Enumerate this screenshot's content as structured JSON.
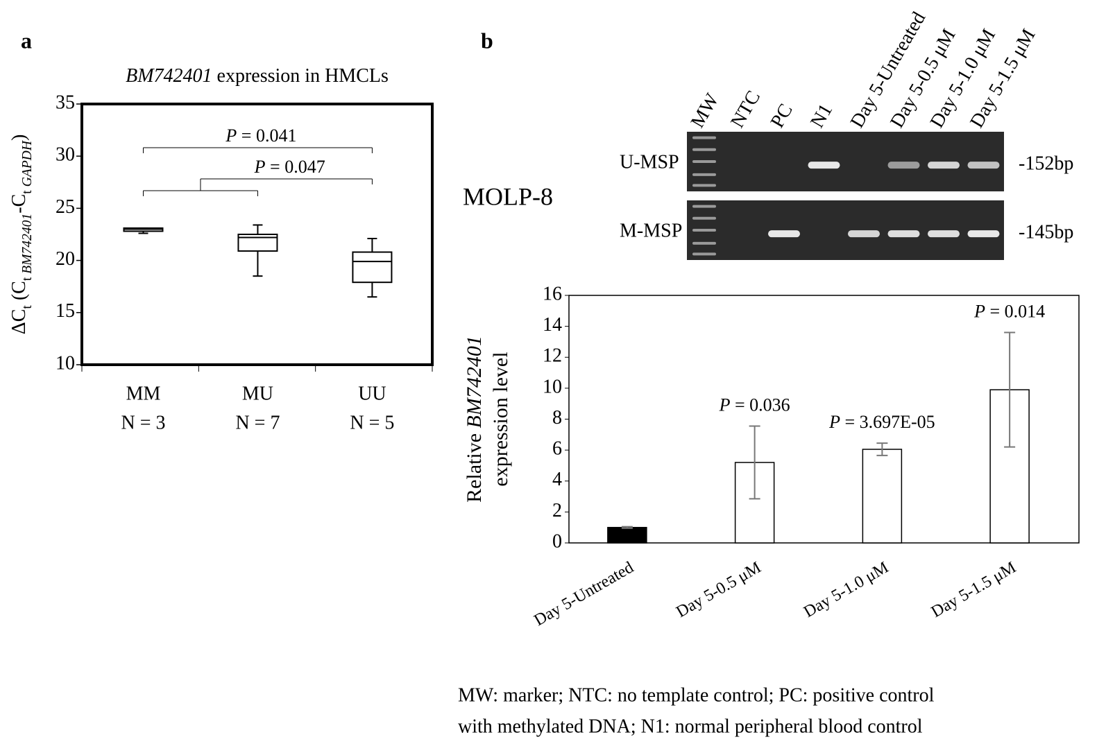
{
  "panels": [
    "a",
    "b"
  ],
  "chart_data": [
    {
      "type": "box",
      "title": [
        {
          "text": "BM742401",
          "italic": true
        },
        {
          "text": " expression in HMCLs"
        }
      ],
      "y_label": [
        {
          "text": "ΔC"
        },
        {
          "text": "t",
          "sub": true
        },
        {
          "text": " (C"
        },
        {
          "text": "t ",
          "sub": true
        },
        {
          "text": "BM742401",
          "sub": true,
          "italic": true
        },
        {
          "text": "-C"
        },
        {
          "text": "t ",
          "sub": true
        },
        {
          "text": "GAPDH",
          "sub": true,
          "italic": true
        },
        {
          "text": ")"
        }
      ],
      "categories": [
        "MM",
        "MU",
        "UU"
      ],
      "group_sizes": [
        "N = 3",
        "N = 7",
        "N = 5"
      ],
      "min": [
        22.6,
        18.5,
        16.5
      ],
      "q1": [
        22.8,
        20.9,
        17.9
      ],
      "median": [
        23.0,
        22.2,
        19.9
      ],
      "q3": [
        23.1,
        22.5,
        20.8
      ],
      "max": [
        23.1,
        23.4,
        22.1
      ],
      "ylim": [
        10,
        35
      ],
      "yticks": [
        10,
        15,
        20,
        25,
        30,
        35
      ],
      "annotations": [
        {
          "label": [
            {
              "text": "P",
              "italic": true
            },
            {
              "text": " = 0.041"
            }
          ],
          "left": [
            0
          ],
          "right": [
            2
          ]
        },
        {
          "label": [
            {
              "text": "P",
              "italic": true
            },
            {
              "text": " = 0.047"
            }
          ],
          "left": [
            0,
            1
          ],
          "right": [
            2
          ]
        }
      ]
    },
    {
      "type": "bar",
      "y_label": [
        [
          {
            "text": "Relative "
          },
          {
            "text": "BM742401",
            "italic": true
          }
        ],
        [
          {
            "text": "expression level"
          }
        ]
      ],
      "categories": [
        "Day 5-Untreated",
        "Day 5-0.5 μM",
        "Day 5-1.0 μM",
        "Day 5-1.5 μM"
      ],
      "values": [
        1.0,
        5.2,
        6.05,
        9.9
      ],
      "errors": [
        0.05,
        2.35,
        0.4,
        3.7
      ],
      "colors": [
        "#000000",
        "#ffffff",
        "#ffffff",
        "#ffffff"
      ],
      "error_color": "#777777",
      "ylim": [
        0,
        16
      ],
      "yticks": [
        0,
        2,
        4,
        6,
        8,
        10,
        12,
        14,
        16
      ],
      "annotations": [
        {
          "label": [
            {
              "text": "P",
              "italic": true
            },
            {
              "text": " = 0.036"
            }
          ],
          "index": 1
        },
        {
          "label": [
            {
              "text": "P",
              "italic": true
            },
            {
              "text": " = 3.697E-05"
            }
          ],
          "index": 2
        },
        {
          "label": [
            {
              "text": "P",
              "italic": true
            },
            {
              "text": " = 0.014"
            }
          ],
          "index": 3
        }
      ]
    }
  ],
  "gel": {
    "cell_line": "MOLP-8",
    "lanes": [
      "MW",
      "NTC",
      "PC",
      "N1",
      "Day 5-Untreated",
      "Day 5-0.5 μM",
      "Day 5-1.0 μM",
      "Day 5-1.5 μM"
    ],
    "rows": [
      {
        "name": "U-MSP",
        "size": "-152bp"
      },
      {
        "name": "M-MSP",
        "size": "-145bp"
      }
    ]
  },
  "footnote": [
    "MW: marker; NTC: no template control; PC: positive control",
    "with methylated DNA; N1: normal peripheral blood control"
  ]
}
